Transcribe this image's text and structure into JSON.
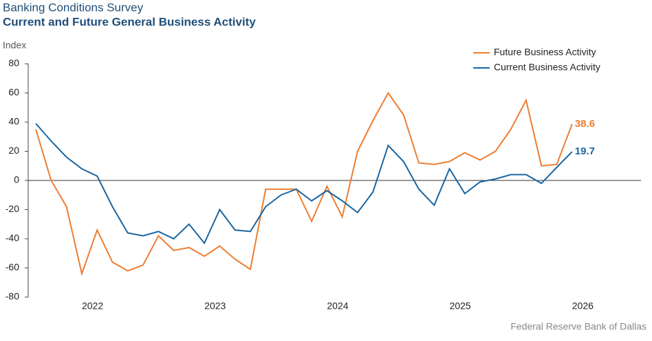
{
  "chart_data": {
    "type": "line",
    "title": "Banking Conditions Survey",
    "subtitle": "Current and Future General Business Activity",
    "y_axis_label": "Index",
    "source": "Federal Reserve Bank of Dallas",
    "x": [
      0,
      1,
      2,
      3,
      4,
      5,
      6,
      7,
      8,
      9,
      10,
      11,
      12,
      13,
      14,
      15,
      16,
      17,
      18,
      19,
      20,
      21,
      22,
      23,
      24,
      25,
      26,
      27,
      28,
      29,
      30,
      31,
      32,
      33,
      34,
      35
    ],
    "xlim": [
      -0.5,
      39.5
    ],
    "xticks": [
      {
        "value": 3.7,
        "label": "2022"
      },
      {
        "value": 11.7,
        "label": "2023"
      },
      {
        "value": 19.7,
        "label": "2024"
      },
      {
        "value": 27.7,
        "label": "2025"
      },
      {
        "value": 35.7,
        "label": "2026"
      }
    ],
    "ylim": [
      -80,
      80
    ],
    "yticks": [
      -80,
      -60,
      -40,
      -20,
      0,
      20,
      40,
      60,
      80
    ],
    "grid": false,
    "legend": "top-right",
    "series": [
      {
        "name": "Future Business Activity",
        "color": "#ed7d31",
        "values": [
          35,
          0,
          -18,
          -64,
          -34,
          -56,
          -62,
          -58,
          -38,
          -48,
          -46,
          -52,
          -45,
          -54,
          -61,
          -6,
          -6,
          -6,
          -28,
          -4,
          -25,
          20,
          41,
          60,
          45,
          12,
          11,
          13,
          19,
          14,
          20,
          35,
          55,
          10,
          11,
          38.6
        ]
      },
      {
        "name": "Current Business Activity",
        "color": "#1a65a0",
        "values": [
          39,
          27,
          16,
          8,
          3,
          -18,
          -36,
          -38,
          -35,
          -40,
          -30,
          -43,
          -20,
          -34,
          -35,
          -18,
          -10,
          -6,
          -14,
          -7,
          -14,
          -22,
          -8,
          24,
          13,
          -6,
          -17,
          8,
          -9,
          -1,
          1,
          4,
          4,
          -2,
          9,
          19.7
        ]
      }
    ]
  }
}
